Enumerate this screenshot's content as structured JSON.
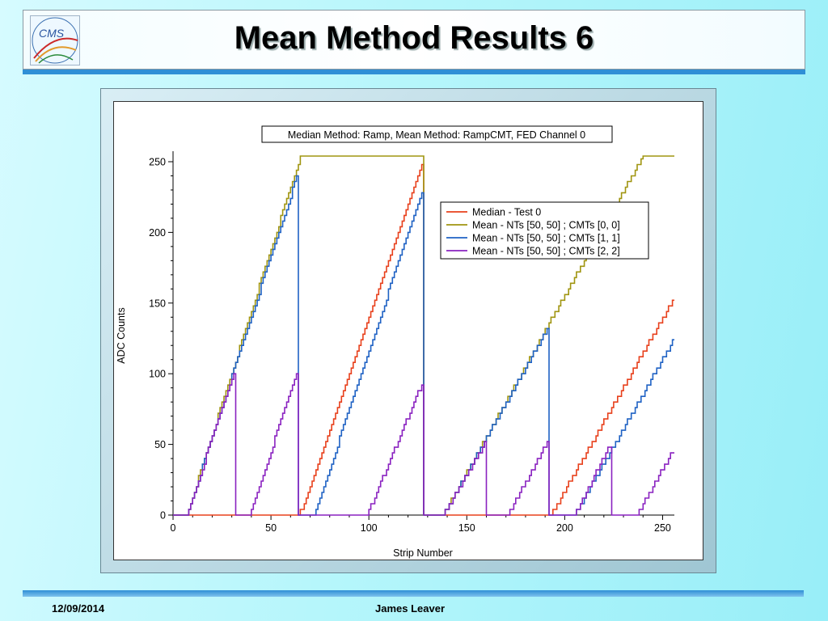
{
  "slide": {
    "title": "Mean Method Results 6",
    "footer_date": "12/09/2014",
    "footer_author": "James Leaver",
    "logo_text": "CMS"
  },
  "chart_data": {
    "type": "line",
    "title": "Median Method: Ramp, Mean Method: RampCMT, FED Channel 0",
    "xlabel": "Strip Number",
    "ylabel": "ADC Counts",
    "xlim": [
      0,
      256
    ],
    "ylim": [
      0,
      254
    ],
    "xticks": [
      0,
      50,
      100,
      150,
      200,
      250
    ],
    "yticks": [
      0,
      50,
      100,
      150,
      200,
      250
    ],
    "grid": false,
    "legend_position": "upper-right",
    "series": [
      {
        "name": "Median - Test 0",
        "color": "#e8401c",
        "points": [
          [
            0,
            0
          ],
          [
            64,
            0
          ],
          [
            68,
            10
          ],
          [
            128,
            254
          ],
          [
            128,
            0
          ],
          [
            140,
            0
          ],
          [
            193,
            0
          ],
          [
            256,
            154
          ]
        ]
      },
      {
        "name": "Mean - NTs [50, 50] ; CMTs [0, 0]",
        "color": "#a09510",
        "points": [
          [
            0,
            0
          ],
          [
            7,
            0
          ],
          [
            65,
            254
          ],
          [
            128,
            254
          ],
          [
            128,
            0
          ],
          [
            138,
            0
          ],
          [
            193,
            138
          ],
          [
            240,
            254
          ],
          [
            256,
            254
          ]
        ]
      },
      {
        "name": "Mean - NTs [50, 50] ; CMTs [1, 1]",
        "color": "#1f62c4",
        "points": [
          [
            0,
            0
          ],
          [
            7,
            0
          ],
          [
            64,
            243
          ],
          [
            64,
            0
          ],
          [
            72,
            0
          ],
          [
            128,
            233
          ],
          [
            128,
            0
          ],
          [
            138,
            0
          ],
          [
            192,
            134
          ],
          [
            192,
            0
          ],
          [
            205,
            0
          ],
          [
            256,
            125
          ]
        ]
      },
      {
        "name": "Mean - NTs [50, 50] ; CMTs [2, 2]",
        "color": "#8a22c0",
        "points": [
          [
            0,
            0
          ],
          [
            7,
            0
          ],
          [
            32,
            105
          ],
          [
            32,
            0
          ],
          [
            39,
            0
          ],
          [
            64,
            104
          ],
          [
            64,
            0
          ],
          [
            97,
            0
          ],
          [
            99,
            0
          ],
          [
            128,
            96
          ],
          [
            128,
            0
          ],
          [
            138,
            0
          ],
          [
            160,
            53
          ],
          [
            160,
            0
          ],
          [
            171,
            0
          ],
          [
            192,
            54
          ],
          [
            192,
            0
          ],
          [
            205,
            0
          ],
          [
            224,
            52
          ],
          [
            224,
            0
          ],
          [
            237,
            0
          ],
          [
            256,
            48
          ]
        ]
      }
    ]
  }
}
